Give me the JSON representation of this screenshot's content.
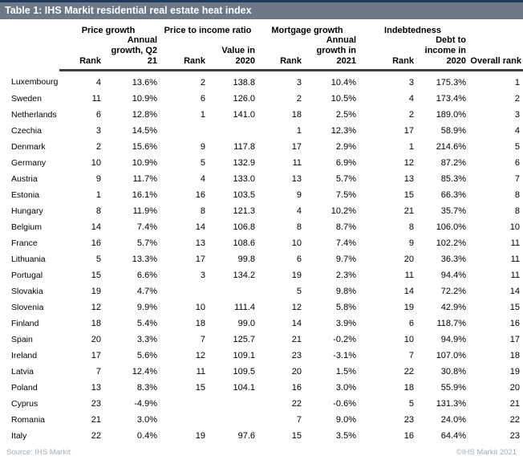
{
  "title": "Table 1: IHS Markit residential real estate heat index",
  "colors": {
    "title_bar": "#6e7987",
    "top_stripe": "#1b3a60",
    "header_rule": "#404040",
    "footer_text": "#a3adb8"
  },
  "table": {
    "groups": [
      "Price growth",
      "Price to income ratio",
      "Mortgage growth",
      "Indebtedness"
    ],
    "subheaders": [
      "",
      "Rank",
      "Annual\ngrowth, Q2\n21",
      "Rank",
      "Value in\n2020",
      "Rank",
      "Annual\ngrowth in\n2021",
      "Rank",
      "Debt to\nincome in\n2020",
      "Overall rank"
    ],
    "rows": [
      [
        "Luxembourg",
        "4",
        "13.6%",
        "2",
        "138.8",
        "3",
        "10.4%",
        "3",
        "175.3%",
        "1"
      ],
      [
        "Sweden",
        "11",
        "10.9%",
        "6",
        "126.0",
        "2",
        "10.5%",
        "4",
        "173.4%",
        "2"
      ],
      [
        "Netherlands",
        "6",
        "12.8%",
        "1",
        "141.0",
        "18",
        "2.5%",
        "2",
        "189.0%",
        "3"
      ],
      [
        "Czechia",
        "3",
        "14.5%",
        "",
        "",
        "1",
        "12.3%",
        "17",
        "58.9%",
        "4"
      ],
      [
        "Denmark",
        "2",
        "15.6%",
        "9",
        "117.8",
        "17",
        "2.9%",
        "1",
        "214.6%",
        "5"
      ],
      [
        "Germany",
        "10",
        "10.9%",
        "5",
        "132.9",
        "11",
        "6.9%",
        "12",
        "87.2%",
        "6"
      ],
      [
        "Austria",
        "9",
        "11.7%",
        "4",
        "133.0",
        "13",
        "5.7%",
        "13",
        "85.3%",
        "7"
      ],
      [
        "Estonia",
        "1",
        "16.1%",
        "16",
        "103.5",
        "9",
        "7.5%",
        "15",
        "66.3%",
        "8"
      ],
      [
        "Hungary",
        "8",
        "11.9%",
        "8",
        "121.3",
        "4",
        "10.2%",
        "21",
        "35.7%",
        "8"
      ],
      [
        "Belgium",
        "14",
        "7.4%",
        "14",
        "106.8",
        "8",
        "8.7%",
        "8",
        "106.0%",
        "10"
      ],
      [
        "France",
        "16",
        "5.7%",
        "13",
        "108.6",
        "10",
        "7.4%",
        "9",
        "102.2%",
        "11"
      ],
      [
        "Lithuania",
        "5",
        "13.3%",
        "17",
        "99.8",
        "6",
        "9.7%",
        "20",
        "36.3%",
        "11"
      ],
      [
        "Portugal",
        "15",
        "6.6%",
        "3",
        "134.2",
        "19",
        "2.3%",
        "11",
        "94.4%",
        "11"
      ],
      [
        "Slovakia",
        "19",
        "4.7%",
        "",
        "",
        "5",
        "9.8%",
        "14",
        "72.2%",
        "14"
      ],
      [
        "Slovenia",
        "12",
        "9.9%",
        "10",
        "111.4",
        "12",
        "5.8%",
        "19",
        "42.9%",
        "15"
      ],
      [
        "Finland",
        "18",
        "5.4%",
        "18",
        "99.0",
        "14",
        "3.9%",
        "6",
        "118.7%",
        "16"
      ],
      [
        "Spain",
        "20",
        "3.3%",
        "7",
        "125.7",
        "21",
        "-0.2%",
        "10",
        "94.9%",
        "17"
      ],
      [
        "Ireland",
        "17",
        "5.6%",
        "12",
        "109.1",
        "23",
        "-3.1%",
        "7",
        "107.0%",
        "18"
      ],
      [
        "Latvia",
        "7",
        "12.4%",
        "11",
        "109.5",
        "20",
        "1.5%",
        "22",
        "30.8%",
        "19"
      ],
      [
        "Poland",
        "13",
        "8.3%",
        "15",
        "104.1",
        "16",
        "3.0%",
        "18",
        "55.9%",
        "20"
      ],
      [
        "Cyprus",
        "23",
        "-4.9%",
        "",
        "",
        "22",
        "-0.6%",
        "5",
        "131.3%",
        "21"
      ],
      [
        "Romania",
        "21",
        "3.0%",
        "",
        "",
        "7",
        "9.0%",
        "23",
        "24.0%",
        "22"
      ],
      [
        "Italy",
        "22",
        "0.4%",
        "19",
        "97.6",
        "15",
        "3.5%",
        "16",
        "64.4%",
        "23"
      ]
    ]
  },
  "footer": {
    "source": "Source: IHS Markit",
    "copyright": "©IHS Markit 2021"
  }
}
